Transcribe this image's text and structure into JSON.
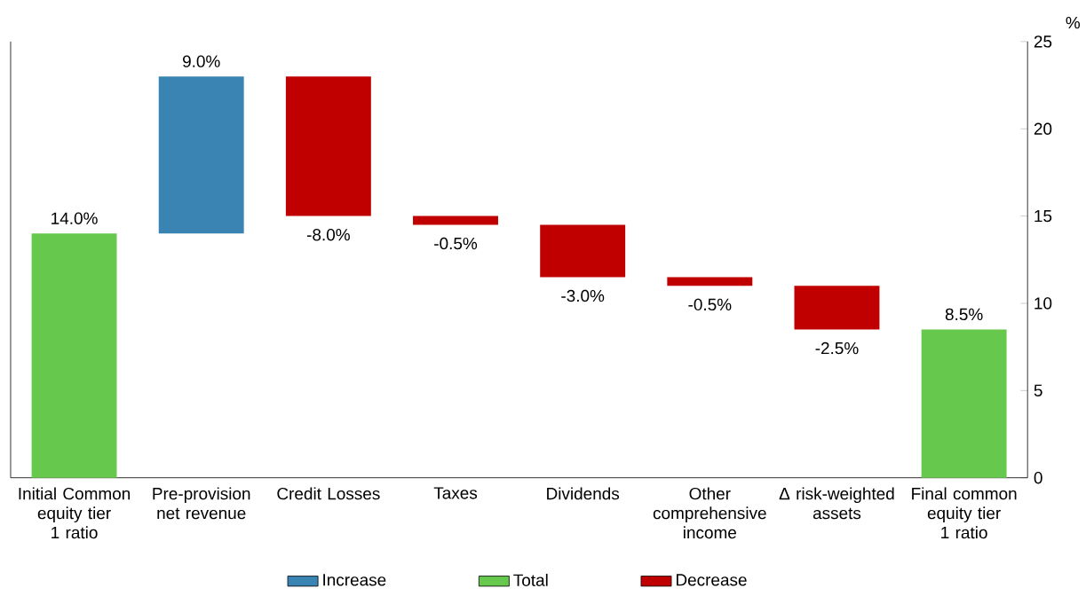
{
  "chart_data": {
    "type": "bar",
    "ylabel": "%",
    "categories": [
      "Initial Common equity tier 1 ratio",
      "Pre-provision net revenue",
      "Credit Losses",
      "Taxes",
      "Dividends",
      "Other comprehensive income",
      "Δ risk-weighted assets",
      "Final common equity tier 1 ratio"
    ],
    "series": [
      {
        "name": "Increase",
        "color": "#3a84b4",
        "values": [
          null,
          9.0,
          null,
          null,
          null,
          null,
          null,
          null
        ],
        "base": [
          null,
          14.0,
          null,
          null,
          null,
          null,
          null,
          null
        ],
        "value_labels": [
          null,
          "9.0%",
          null,
          null,
          null,
          null,
          null,
          null
        ]
      },
      {
        "name": "Total",
        "color": "#66c84c",
        "values": [
          14.0,
          null,
          null,
          null,
          null,
          null,
          null,
          8.5
        ],
        "base": [
          0,
          null,
          null,
          null,
          null,
          null,
          null,
          0
        ],
        "value_labels": [
          "14.0%",
          null,
          null,
          null,
          null,
          null,
          null,
          "8.5%"
        ]
      },
      {
        "name": "Decrease",
        "color": "#c00000",
        "values": [
          null,
          null,
          -8.0,
          -0.5,
          -3.0,
          -0.5,
          -2.5,
          null
        ],
        "base": [
          null,
          null,
          23.0,
          15.0,
          14.5,
          11.5,
          11.0,
          null
        ],
        "value_labels": [
          null,
          null,
          "-8.0%",
          "-0.5%",
          "-3.0%",
          "-0.5%",
          "-2.5%",
          null
        ]
      }
    ],
    "ylim": [
      0,
      25
    ],
    "yticks": [
      0,
      5,
      10,
      15,
      20,
      25
    ],
    "grid": false,
    "legend": "bottom"
  }
}
